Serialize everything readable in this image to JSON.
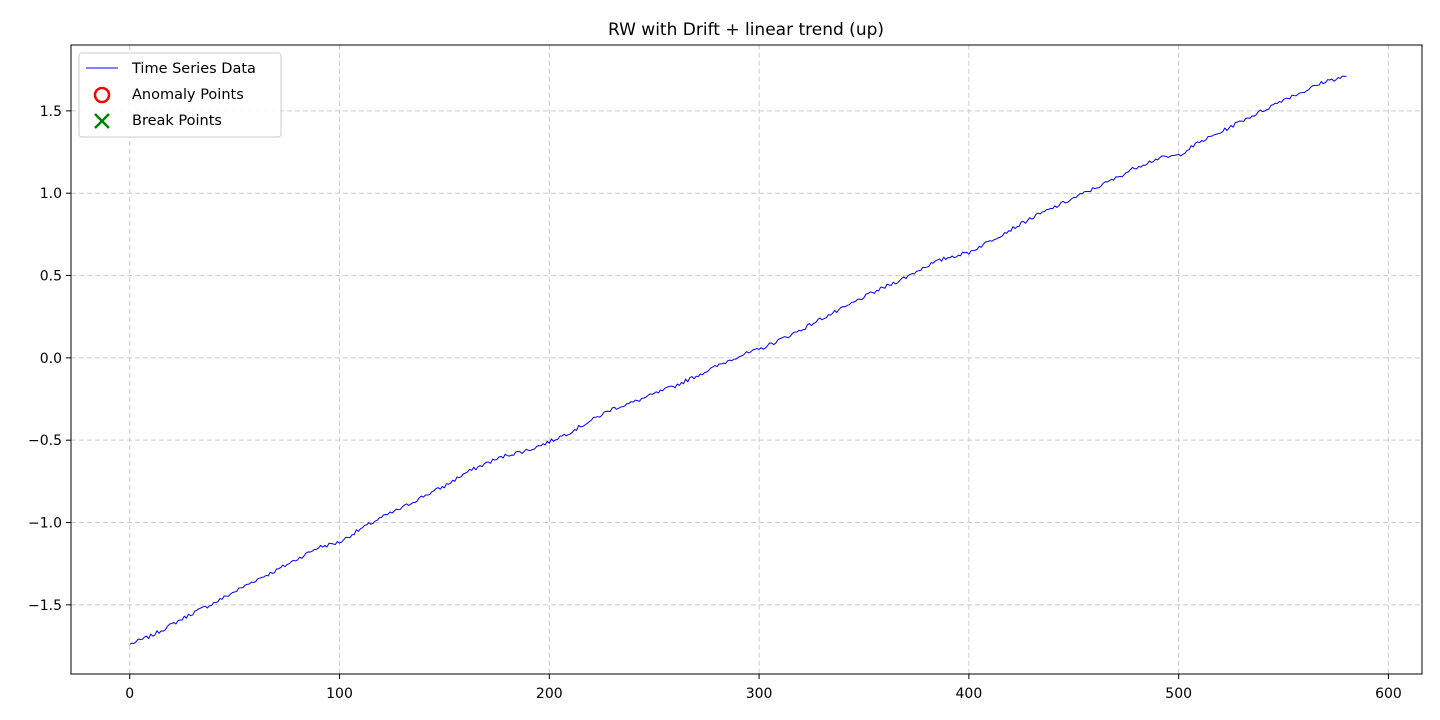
{
  "chart_data": {
    "type": "line",
    "title": "RW with Drift + linear trend (up)",
    "xlabel": "",
    "ylabel": "",
    "xlim": [
      -28,
      616
    ],
    "ylim": [
      -1.92,
      1.9
    ],
    "x_ticks": [
      0,
      100,
      200,
      300,
      400,
      500,
      600
    ],
    "y_ticks": [
      -1.5,
      -1.0,
      -0.5,
      0.0,
      0.5,
      1.0,
      1.5
    ],
    "x_tick_labels": [
      "0",
      "100",
      "200",
      "300",
      "400",
      "500",
      "600"
    ],
    "y_tick_labels": [
      "−1.5",
      "−1.0",
      "−0.5",
      "0.0",
      "0.5",
      "1.0",
      "1.5"
    ],
    "grid": true,
    "legend_position": "top-left",
    "series": [
      {
        "name": "Time Series Data",
        "color": "#0000ff",
        "style": "line",
        "x_start": 0,
        "x_step": 10,
        "values": [
          -1.74,
          -1.69,
          -1.62,
          -1.55,
          -1.49,
          -1.42,
          -1.35,
          -1.29,
          -1.22,
          -1.15,
          -1.12,
          -1.04,
          -0.97,
          -0.91,
          -0.84,
          -0.78,
          -0.7,
          -0.64,
          -0.59,
          -0.56,
          -0.51,
          -0.45,
          -0.38,
          -0.31,
          -0.27,
          -0.22,
          -0.17,
          -0.11,
          -0.05,
          0.01,
          0.05,
          0.11,
          0.17,
          0.24,
          0.3,
          0.37,
          0.43,
          0.49,
          0.56,
          0.61,
          0.64,
          0.71,
          0.78,
          0.85,
          0.91,
          0.97,
          1.03,
          1.09,
          1.16,
          1.21,
          1.23,
          1.31,
          1.37,
          1.44,
          1.5,
          1.57,
          1.62,
          1.68,
          1.71
        ],
        "noise_amplitude": 0.012
      },
      {
        "name": "Anomaly Points",
        "color": "#ff0000",
        "style": "open-circle-marker",
        "values": []
      },
      {
        "name": "Break Points",
        "color": "#008000",
        "style": "x-marker",
        "values": []
      }
    ]
  }
}
